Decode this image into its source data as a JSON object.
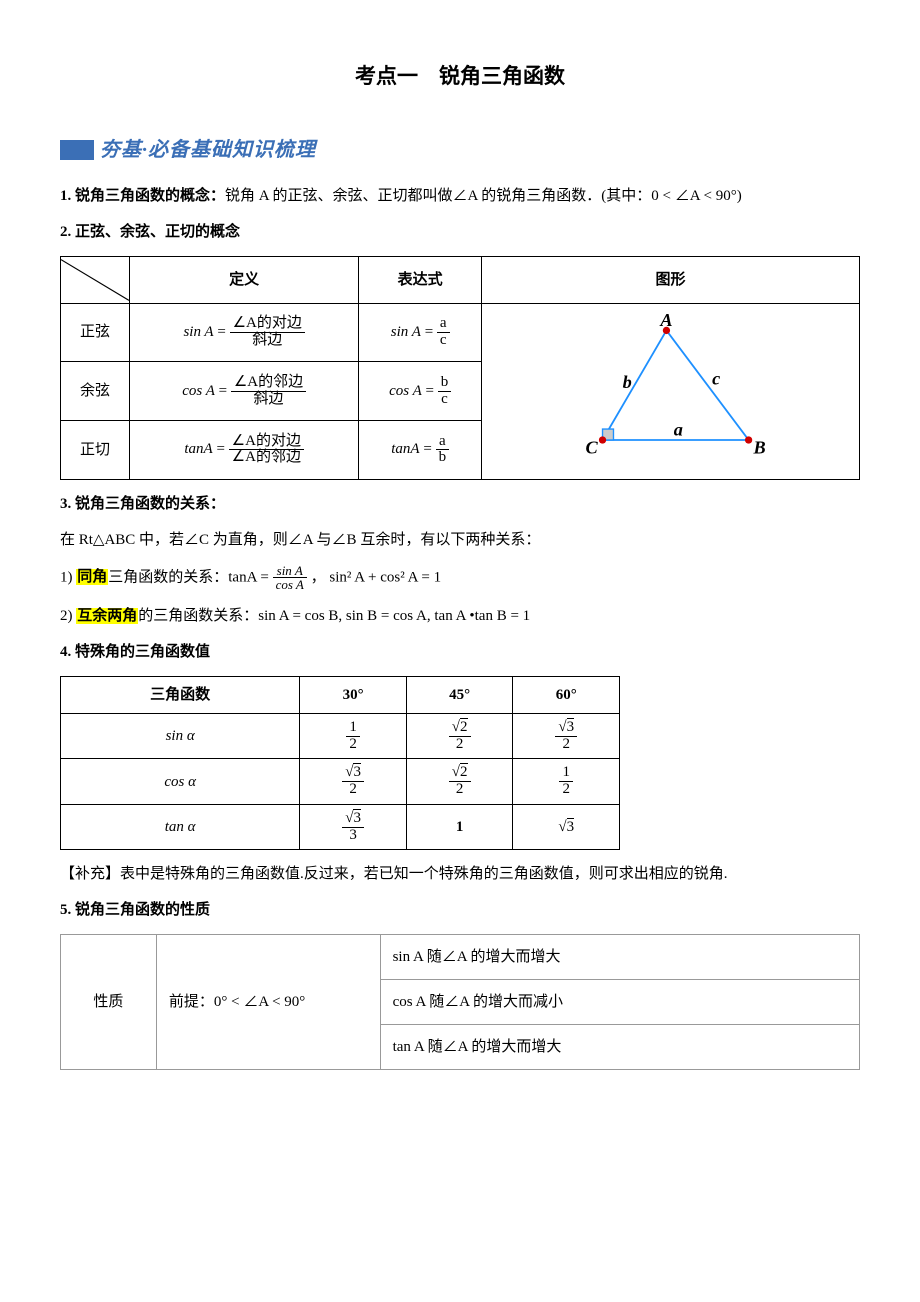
{
  "title": "考点一　锐角三角函数",
  "banner": "夯基·必备基础知识梳理",
  "s1": {
    "head": "1. 锐角三角函数的概念：",
    "body": "锐角 A 的正弦、余弦、正切都叫做∠A 的锐角三角函数．(其中：0 < ∠A < 90°)"
  },
  "s2": {
    "head": "2. 正弦、余弦、正切的概念",
    "table": {
      "headers": [
        "定义",
        "表达式",
        "图形"
      ],
      "rows": [
        {
          "name": "正弦",
          "fn": "sin A",
          "num": "∠A的对边",
          "den": "斜边",
          "expr_num": "a",
          "expr_den": "c"
        },
        {
          "name": "余弦",
          "fn": "cos A",
          "num": "∠A的邻边",
          "den": "斜边",
          "expr_num": "b",
          "expr_den": "c"
        },
        {
          "name": "正切",
          "fn": "tanA",
          "num": "∠A的对边",
          "den": "∠A的邻边",
          "expr_num": "a",
          "expr_den": "b"
        }
      ],
      "triangle": {
        "A": "A",
        "B": "B",
        "C": "C",
        "a": "a",
        "b": "b",
        "c": "c",
        "points": {
          "A": [
            110,
            15
          ],
          "C": [
            40,
            135
          ],
          "B": [
            200,
            135
          ]
        },
        "color_edge": "#1e90ff",
        "color_pt": "#d00000"
      }
    }
  },
  "s3": {
    "head": "3. 锐角三角函数的关系：",
    "line0": "在 Rt△ABC 中，若∠C 为直角，则∠A 与∠B 互余时，有以下两种关系：",
    "l1_pre": "1) ",
    "l1_hl": "同角",
    "l1_mid": "三角函数的关系：tanA = ",
    "l1_frac_num": "sin A",
    "l1_frac_den": "cos A",
    "l1_tail": " ，  sin² A + cos² A = 1",
    "l2_pre": "2) ",
    "l2_hl": "互余两角",
    "l2_tail": "的三角函数关系：sin A = cos B, sin B = cos A,  tan A •tan B = 1"
  },
  "s4": {
    "head": "4. 特殊角的三角函数值",
    "cols": [
      "三角函数",
      "30°",
      "45°",
      "60°"
    ],
    "rows": [
      {
        "fn": "sin α",
        "v": [
          {
            "n": "1",
            "d": "2"
          },
          {
            "n": "√2",
            "d": "2"
          },
          {
            "n": "√3",
            "d": "2"
          }
        ]
      },
      {
        "fn": "cos α",
        "v": [
          {
            "n": "√3",
            "d": "2"
          },
          {
            "n": "√2",
            "d": "2"
          },
          {
            "n": "1",
            "d": "2"
          }
        ]
      },
      {
        "fn": "tan α",
        "v": [
          {
            "n": "√3",
            "d": "3"
          },
          {
            "plain": "1"
          },
          {
            "plain": "√3"
          }
        ]
      }
    ],
    "note": "【补充】表中是特殊角的三角函数值.反过来，若已知一个特殊角的三角函数值，则可求出相应的锐角."
  },
  "s5": {
    "head": "5. 锐角三角函数的性质",
    "col1": "性质",
    "col2": "前提：0° < ∠A < 90°",
    "rows": [
      "sin A 随∠A 的增大而增大",
      "cos A 随∠A 的增大而减小",
      "tan A 随∠A 的增大而增大"
    ]
  }
}
